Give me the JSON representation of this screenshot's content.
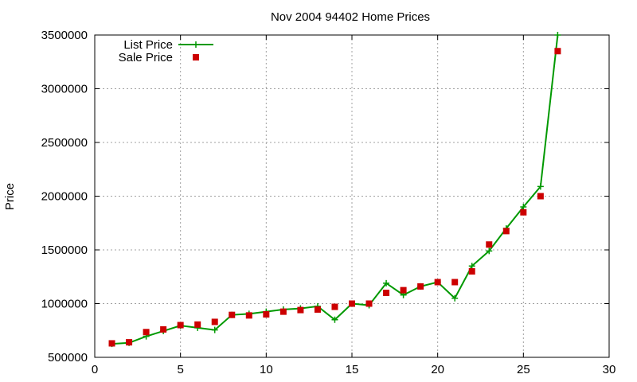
{
  "chart_data": {
    "type": "line",
    "title": "Nov 2004 94402 Home Prices",
    "xlabel": "",
    "ylabel": "Price",
    "xlim": [
      0,
      30
    ],
    "ylim": [
      500000,
      3500000
    ],
    "xticks": [
      0,
      5,
      10,
      15,
      20,
      25,
      30
    ],
    "yticks": [
      500000,
      1000000,
      1500000,
      2000000,
      2500000,
      3000000,
      3500000
    ],
    "grid": true,
    "legend_position": "top-left",
    "series": [
      {
        "name": "List Price",
        "style": "line-with-plus-markers",
        "color": "#009900",
        "x": [
          1,
          2,
          3,
          4,
          5,
          6,
          7,
          8,
          9,
          10,
          11,
          12,
          13,
          14,
          15,
          16,
          17,
          18,
          19,
          20,
          21,
          22,
          23,
          24,
          25,
          26,
          27
        ],
        "y": [
          625000,
          635000,
          695000,
          745000,
          795000,
          775000,
          755000,
          895000,
          905000,
          925000,
          945000,
          955000,
          975000,
          850000,
          1000000,
          985000,
          1190000,
          1080000,
          1160000,
          1200000,
          1050000,
          1350000,
          1490000,
          1700000,
          1900000,
          2090000,
          3500000
        ]
      },
      {
        "name": "Sale Price",
        "style": "square-markers",
        "color": "#cc0000",
        "x": [
          1,
          2,
          3,
          4,
          5,
          6,
          7,
          8,
          9,
          10,
          11,
          12,
          13,
          14,
          15,
          16,
          17,
          18,
          19,
          20,
          21,
          22,
          23,
          24,
          25,
          26,
          27
        ],
        "y": [
          630000,
          640000,
          735000,
          760000,
          800000,
          805000,
          830000,
          895000,
          890000,
          900000,
          925000,
          940000,
          945000,
          970000,
          1000000,
          1000000,
          1100000,
          1125000,
          1160000,
          1200000,
          1200000,
          1300000,
          1550000,
          1675000,
          1850000,
          2000000,
          3350000
        ]
      }
    ]
  }
}
